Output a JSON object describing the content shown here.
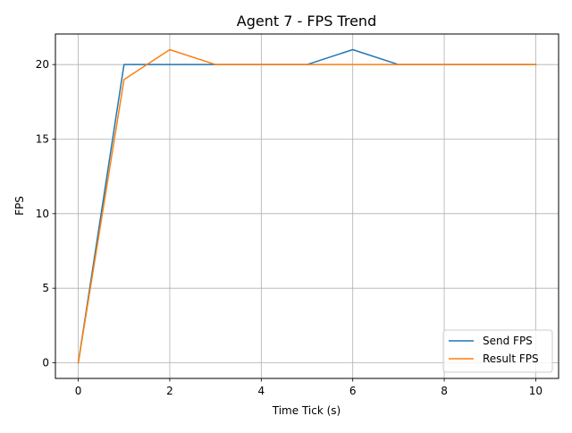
{
  "chart_data": {
    "type": "line",
    "title": "Agent 7 - FPS Trend",
    "xlabel": "Time Tick (s)",
    "ylabel": "FPS",
    "xlim": [
      -0.5,
      10.5
    ],
    "ylim": [
      -1.05,
      22.05
    ],
    "xticks": [
      0,
      2,
      4,
      6,
      8,
      10
    ],
    "yticks": [
      0,
      5,
      10,
      15,
      20
    ],
    "grid": true,
    "legend_position": "lower-right",
    "x": [
      0,
      1,
      2,
      3,
      4,
      5,
      6,
      7,
      8,
      9,
      10
    ],
    "series": [
      {
        "name": "Send FPS",
        "color": "#1f77b4",
        "values": [
          0,
          20,
          20,
          20,
          20,
          20,
          21,
          20,
          20,
          20,
          20
        ]
      },
      {
        "name": "Result FPS",
        "color": "#ff7f0e",
        "values": [
          0,
          19,
          21,
          20,
          20,
          20,
          20,
          20,
          20,
          20,
          20
        ]
      }
    ]
  }
}
